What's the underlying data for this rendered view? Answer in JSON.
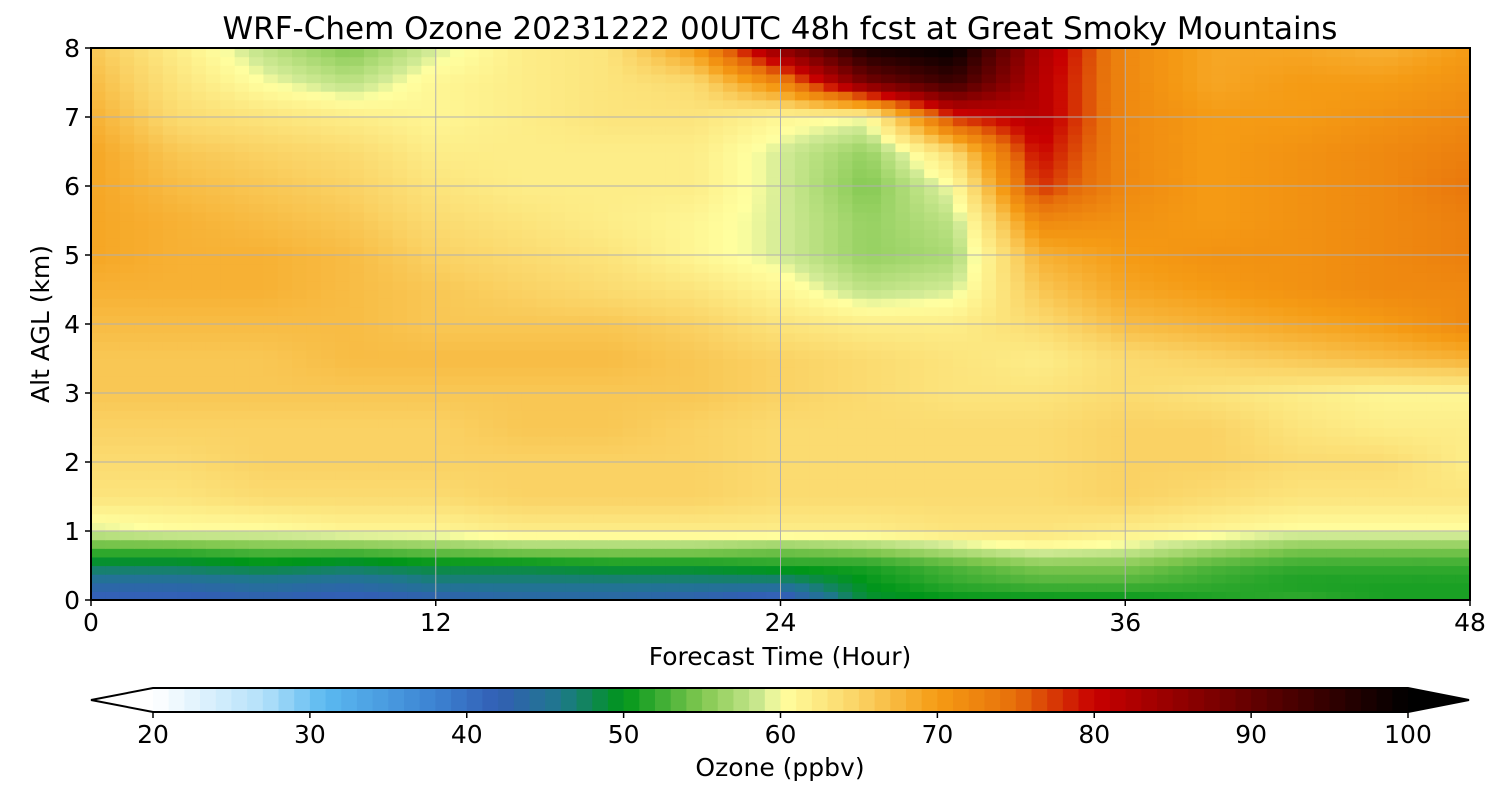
{
  "chart_data": {
    "type": "heatmap",
    "title": "WRF-Chem Ozone  20231222 00UTC 48h fcst at Great Smoky Mountains",
    "xlabel": "Forecast Time (Hour)",
    "ylabel": "Alt AGL (km)",
    "xlim": [
      0,
      48
    ],
    "ylim": [
      0,
      8
    ],
    "xticks": [
      0,
      12,
      24,
      36,
      48
    ],
    "yticks": [
      0,
      1,
      2,
      3,
      4,
      5,
      6,
      7,
      8
    ],
    "grid": true,
    "x": [
      0,
      3,
      6,
      9,
      12,
      15,
      18,
      21,
      24,
      27,
      30,
      33,
      36,
      39,
      42,
      45,
      48
    ],
    "y": [
      0,
      0.25,
      0.5,
      0.75,
      1,
      1.5,
      2,
      2.5,
      3,
      3.5,
      4,
      4.5,
      5,
      5.5,
      6,
      6.5,
      7,
      7.5,
      8
    ],
    "z": [
      [
        41,
        41,
        42,
        41,
        42,
        43,
        43,
        42,
        40,
        49,
        50,
        50,
        50,
        51,
        52,
        51,
        51
      ],
      [
        44,
        44,
        45,
        44,
        46,
        46,
        46,
        46,
        46,
        50,
        52,
        53,
        53,
        52,
        51,
        51,
        51
      ],
      [
        48,
        48,
        49,
        48,
        49,
        49,
        50,
        50,
        51,
        51,
        53,
        55,
        55,
        53,
        52,
        52,
        52
      ],
      [
        53,
        53,
        54,
        54,
        55,
        56,
        56,
        56,
        55,
        56,
        58,
        60,
        59,
        57,
        55,
        55,
        55
      ],
      [
        59,
        60,
        60,
        61,
        61,
        62,
        62,
        62,
        62,
        62,
        63,
        63,
        62,
        61,
        60,
        60,
        60
      ],
      [
        63,
        63,
        64,
        64,
        64,
        65,
        65,
        65,
        64,
        64,
        64,
        64,
        65,
        64,
        63,
        63,
        63
      ],
      [
        64,
        64,
        65,
        65,
        65,
        65,
        65,
        65,
        64,
        64,
        64,
        64,
        65,
        65,
        64,
        64,
        62
      ],
      [
        65,
        65,
        65,
        65,
        65,
        66,
        66,
        65,
        64,
        64,
        64,
        64,
        65,
        65,
        63,
        62,
        62
      ],
      [
        66,
        66,
        66,
        66,
        66,
        66,
        66,
        66,
        65,
        64,
        63,
        63,
        64,
        63,
        62,
        61,
        61
      ],
      [
        66,
        66,
        66,
        67,
        67,
        67,
        67,
        66,
        65,
        64,
        63,
        62,
        64,
        65,
        66,
        67,
        68
      ],
      [
        67,
        67,
        67,
        67,
        66,
        66,
        66,
        65,
        63,
        62,
        62,
        64,
        67,
        68,
        69,
        70,
        72
      ],
      [
        68,
        68,
        68,
        67,
        66,
        65,
        64,
        63,
        61,
        58,
        59,
        66,
        69,
        70,
        71,
        72,
        72
      ],
      [
        69,
        68,
        68,
        67,
        65,
        64,
        63,
        61,
        59,
        56,
        57,
        68,
        70,
        71,
        71,
        72,
        73
      ],
      [
        69,
        68,
        67,
        66,
        64,
        63,
        62,
        61,
        59,
        56,
        58,
        72,
        71,
        70,
        71,
        72,
        73
      ],
      [
        69,
        67,
        66,
        65,
        63,
        62,
        62,
        62,
        59,
        55,
        60,
        78,
        72,
        70,
        71,
        72,
        74
      ],
      [
        69,
        66,
        65,
        64,
        62,
        62,
        62,
        62,
        59,
        56,
        64,
        80,
        72,
        70,
        71,
        72,
        73
      ],
      [
        68,
        64,
        63,
        62,
        61,
        62,
        63,
        63,
        61,
        60,
        78,
        82,
        72,
        70,
        70,
        71,
        72
      ],
      [
        67,
        63,
        60,
        58,
        61,
        62,
        63,
        64,
        72,
        88,
        94,
        82,
        72,
        69,
        70,
        70,
        71
      ],
      [
        66,
        62,
        58,
        55,
        59,
        62,
        63,
        70,
        86,
        98,
        100,
        83,
        72,
        69,
        69,
        68,
        70
      ]
    ],
    "colorbar": {
      "label": "Ozone  (ppbv)",
      "min": 20,
      "max": 100,
      "ticks": [
        20,
        30,
        40,
        50,
        60,
        70,
        80,
        90,
        100
      ],
      "extend": "both",
      "colors": [
        [
          "20",
          "#ffffff"
        ],
        [
          "27",
          "#b4e1fa"
        ],
        [
          "31",
          "#5ab9f0"
        ],
        [
          "38",
          "#3c82d2"
        ],
        [
          "42",
          "#325fb4"
        ],
        [
          "46",
          "#1e788c"
        ],
        [
          "50",
          "#009619"
        ],
        [
          "55",
          "#82c850"
        ],
        [
          "59",
          "#d2eb96"
        ],
        [
          "60",
          "#ffffa0"
        ],
        [
          "65",
          "#fad264"
        ],
        [
          "70",
          "#f59b14"
        ],
        [
          "75",
          "#e66e0a"
        ],
        [
          "80",
          "#c80000"
        ],
        [
          "90",
          "#640000"
        ],
        [
          "100",
          "#000000"
        ]
      ]
    }
  }
}
